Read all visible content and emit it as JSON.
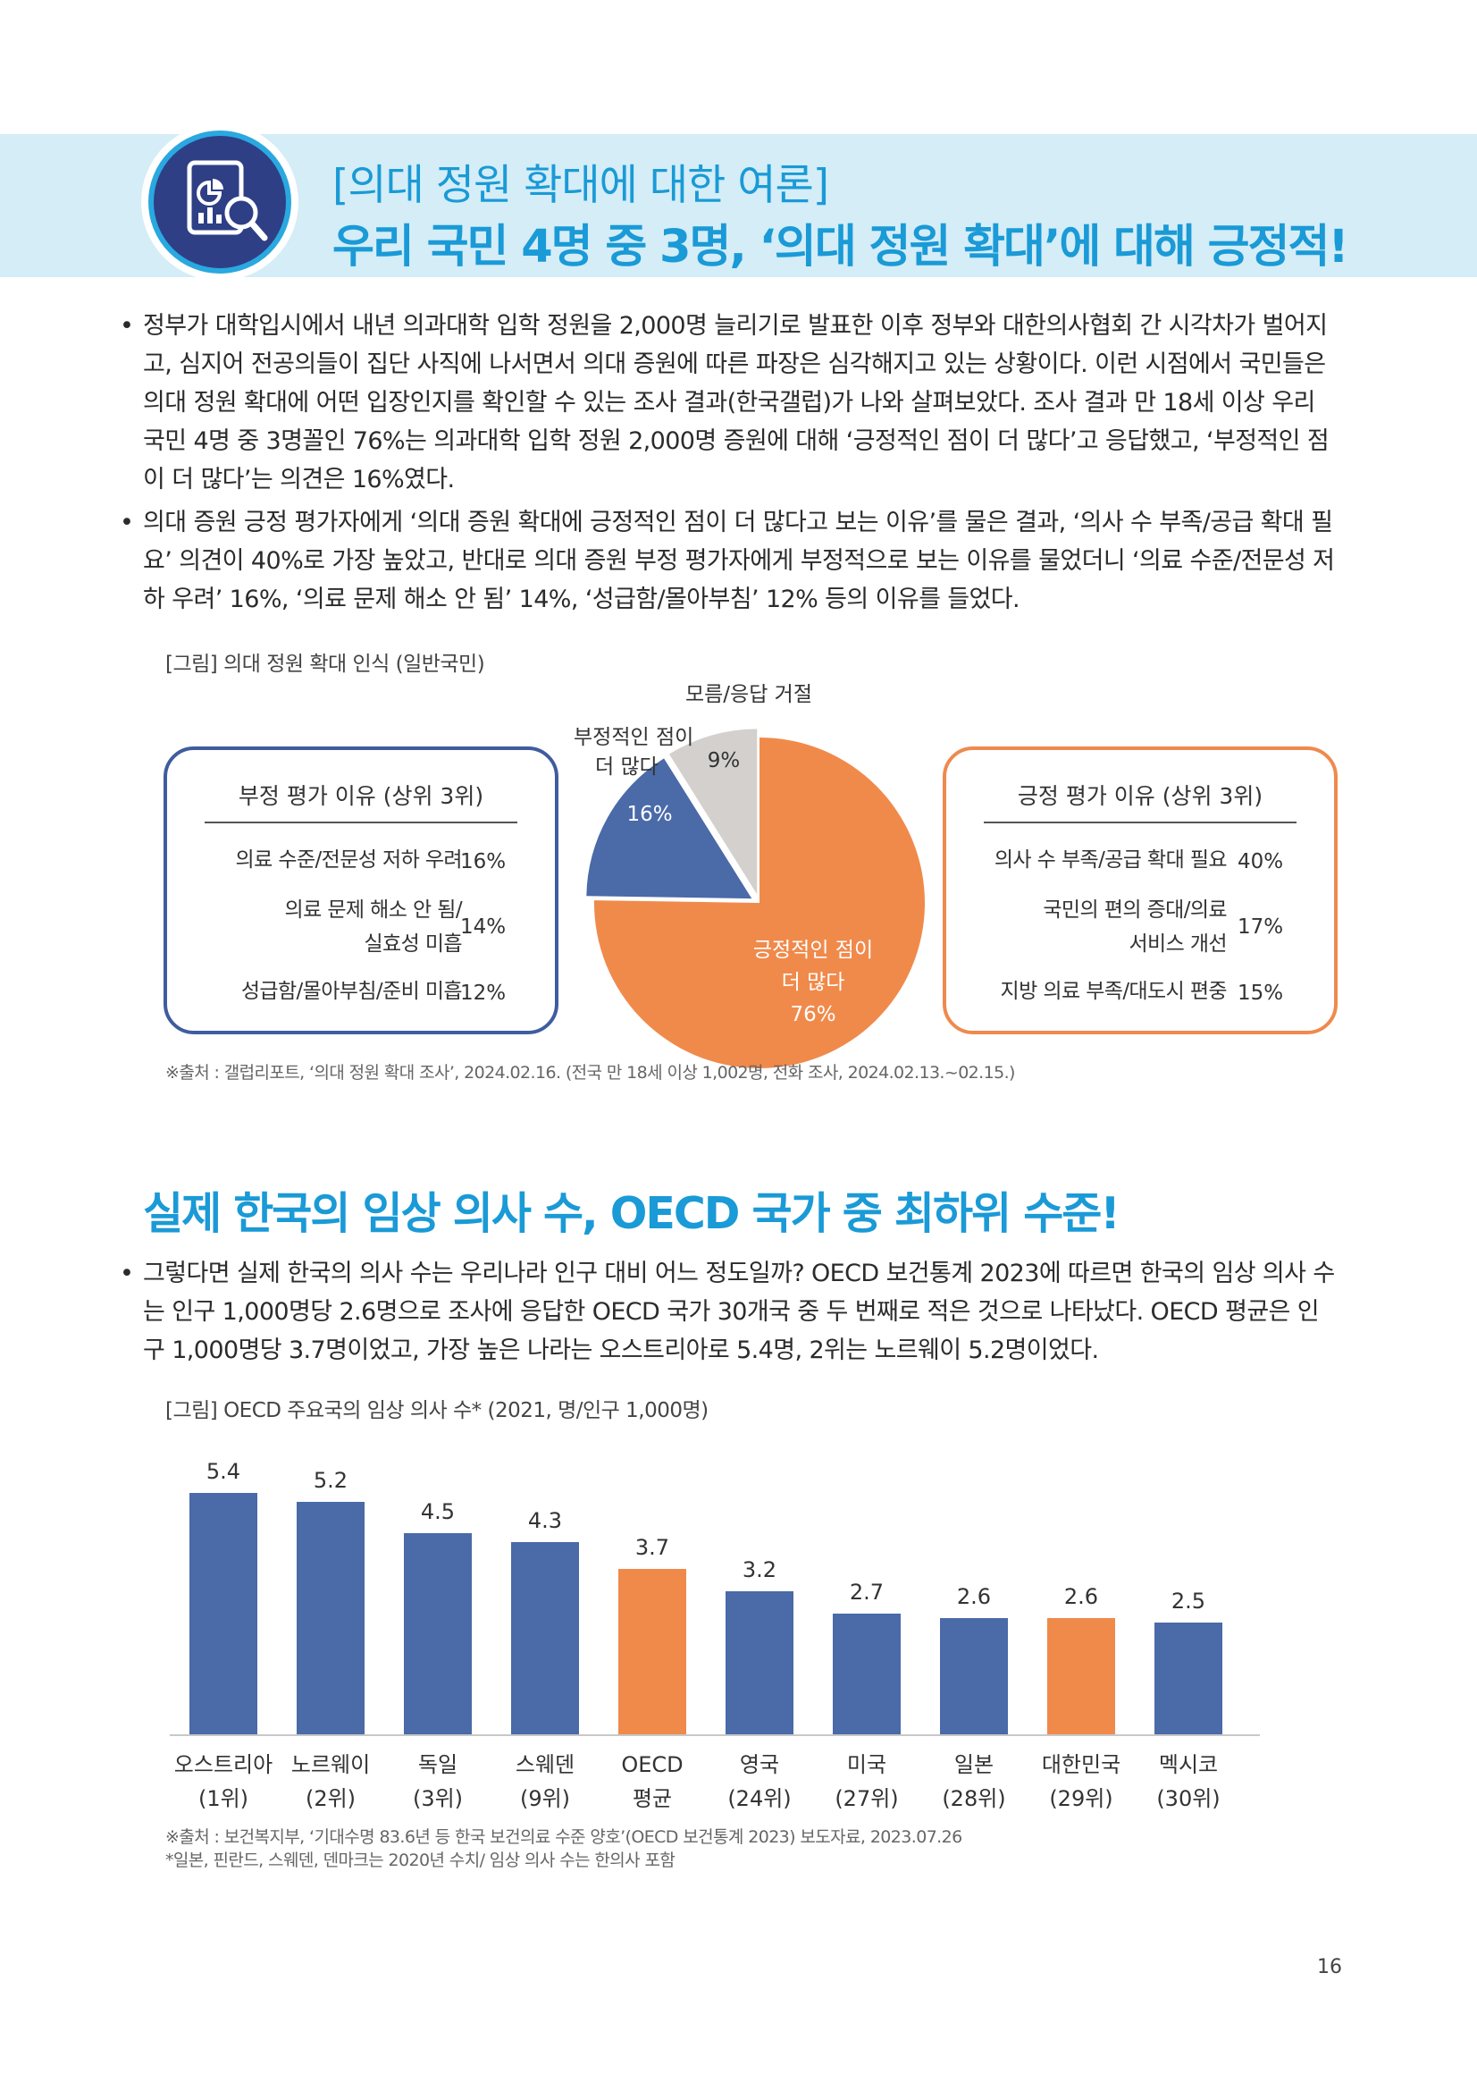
{
  "header": {
    "kicker": "[의대 정원 확대에 대한 여론]",
    "title": "우리 국민 4명 중 3명, ‘의대 정원 확대’에 대해 긍정적!"
  },
  "section1": {
    "bullets": [
      "정부가 대학입시에서 내년 의과대학 입학 정원을 2,000명 늘리기로 발표한 이후 정부와 대한의사협회 간 시각차가 벌어지고, 심지어 전공의들이 집단 사직에 나서면서 의대 증원에 따른 파장은 심각해지고 있는 상황이다. 이런 시점에서 국민들은 의대 정원 확대에 어떤 입장인지를 확인할 수 있는 조사 결과(한국갤럽)가 나와 살펴보았다. 조사 결과 만 18세 이상 우리 국민 4명 중 3명꼴인 76%는 의과대학 입학 정원 2,000명 증원에 대해 ‘긍정적인 점이 더 많다’고 응답했고, ‘부정적인 점이 더 많다’는 의견은 16%였다.",
      "의대 증원 긍정 평가자에게 ‘의대 증원 확대에 긍정적인 점이 더 많다고 보는 이유’를 물은 결과, ‘의사 수 부족/공급 확대 필요’ 의견이 40%로 가장 높았고, 반대로 의대 증원 부정 평가자에게 부정적으로 보는 이유를 물었더니 ‘의료 수준/전문성 저하 우려’ 16%, ‘의료 문제 해소 안 됨’ 14%, ‘성급함/몰아부침’ 12% 등의 이유를 들었다."
    ],
    "figure_label": "[그림] 의대 정원 확대 인식 (일반국민)",
    "negative_box": {
      "title": "부정 평가 이유 (상위 3위)",
      "items": [
        {
          "line1": "의료 수준/전문성 저하 우려",
          "line2": "",
          "value": "16%"
        },
        {
          "line1": "의료 문제 해소 안 됨/",
          "line2": "실효성 미흡",
          "value": "14%"
        },
        {
          "line1": "성급함/몰아부침/준비 미흡",
          "line2": "",
          "value": "12%"
        }
      ]
    },
    "positive_box": {
      "title": "긍정 평가 이유 (상위 3위)",
      "items": [
        {
          "line1": "의사 수 부족/공급 확대 필요",
          "line2": "",
          "value": "40%"
        },
        {
          "line1": "국민의 편의 증대/의료",
          "line2": "서비스 개선",
          "value": "17%"
        },
        {
          "line1": "지방 의료 부족/대도시 편중",
          "line2": "",
          "value": "15%"
        }
      ]
    },
    "source": "※출처 : 갤럽리포트, ‘의대 정원 확대 조사’, 2024.02.16. (전국 만 18세 이상 1,002명, 전화 조사, 2024.02.13.~02.15.)"
  },
  "section2": {
    "title": "실제 한국의 임상 의사 수, OECD 국가 중 최하위 수준!",
    "bullet": "그렇다면 실제 한국의 의사 수는 우리나라 인구 대비 어느 정도일까? OECD 보건통계 2023에 따르면 한국의 임상 의사 수는 인구 1,000명당 2.6명으로 조사에 응답한 OECD 국가 30개국 중 두 번째로 적은 것으로 나타났다. OECD 평균은 인구 1,000명당 3.7명이었고, 가장 높은 나라는 오스트리아로 5.4명, 2위는 노르웨이 5.2명이었다.",
    "figure_label": "[그림] OECD 주요국의 임상 의사 수* (2021, 명/인구 1,000명)",
    "source": "※출처 : 보건복지부, ‘기대수명 83.6년 등 한국 보건의료 수준 양호’(OECD 보건통계 2023) 보도자료, 2023.07.26",
    "note": "*일본, 핀란드, 스웨덴, 덴마크는 2020년 수치/ 임상 의사 수는 한의사 포함"
  },
  "page_number": "16",
  "chart_data": [
    {
      "type": "pie",
      "title": "의대 정원 확대 인식 (일반국민)",
      "slices": [
        {
          "label_line1": "긍정적인 점이",
          "label_line2": "더 많다",
          "pct_label": "76%",
          "value": 76,
          "color": "#f08a4b"
        },
        {
          "label_line1": "부정적인 점이",
          "label_line2": "더 많다",
          "pct_label": "16%",
          "value": 16,
          "color": "#4a6aa8"
        },
        {
          "label_line1": "모름/응답 거절",
          "label_line2": "",
          "pct_label": "9%",
          "value": 9,
          "color": "#d3d0cd"
        }
      ]
    },
    {
      "type": "bar",
      "title": "OECD 주요국의 임상 의사 수* (2021, 명/인구 1,000명)",
      "categories": [
        "오스트리아",
        "노르웨이",
        "독일",
        "스웨덴",
        "OECD",
        "영국",
        "미국",
        "일본",
        "대한민국",
        "멕시코"
      ],
      "ranks": [
        "(1위)",
        "(2위)",
        "(3위)",
        "(9위)",
        "평균",
        "(24위)",
        "(27위)",
        "(28위)",
        "(29위)",
        "(30위)"
      ],
      "values": [
        5.4,
        5.2,
        4.5,
        4.3,
        3.7,
        3.2,
        2.7,
        2.6,
        2.6,
        2.5
      ],
      "value_labels": [
        "5.4",
        "5.2",
        "4.5",
        "4.3",
        "3.7",
        "3.2",
        "2.7",
        "2.6",
        "2.6",
        "2.5"
      ],
      "highlight": [
        false,
        false,
        false,
        false,
        true,
        false,
        false,
        false,
        true,
        false
      ],
      "colors": {
        "default": "#4a6aa8",
        "highlight": "#f08a4b"
      },
      "ylim": [
        0,
        6
      ]
    }
  ]
}
